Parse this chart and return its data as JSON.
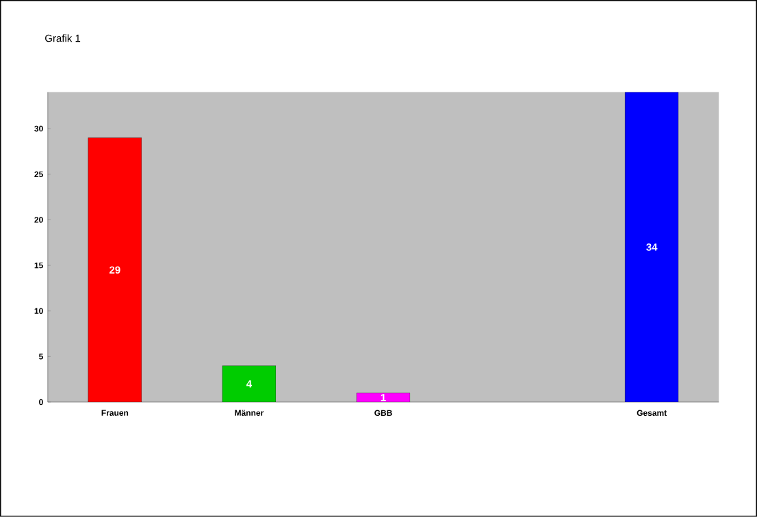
{
  "chart_data": {
    "type": "bar",
    "title": "Grafik 1",
    "categories": [
      "Frauen",
      "Männer",
      "GBB",
      null,
      "Gesamt"
    ],
    "values": [
      29,
      4,
      1,
      null,
      34
    ],
    "colors": [
      "#ff0000",
      "#00cc00",
      "#ff00ff",
      "#c0c0c0",
      "#0000ff"
    ],
    "ylim": [
      0,
      34
    ],
    "yticks": [
      0,
      5,
      10,
      15,
      20,
      25,
      30
    ],
    "data_labels": true,
    "grid": false
  }
}
